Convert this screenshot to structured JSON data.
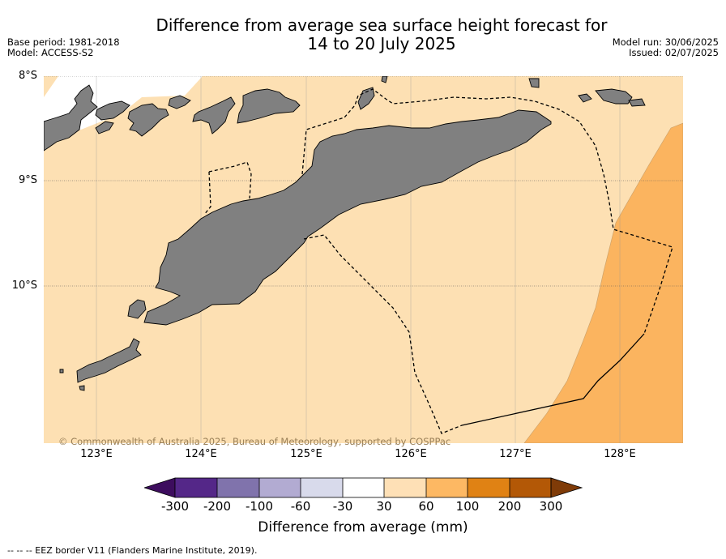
{
  "title": "Difference from average sea surface height forecast for\n14 to 20 July 2025",
  "meta_left": {
    "base_period": "Base period: 1981-2018",
    "model": "Model: ACCESS-S2"
  },
  "meta_right": {
    "model_run": "Model run: 30/06/2025",
    "issued": "Issued: 02/07/2025"
  },
  "map": {
    "lat_labels": [
      "8°S",
      "9°S",
      "10°S"
    ],
    "lon_labels": [
      "123°E",
      "124°E",
      "125°E",
      "126°E",
      "127°E",
      "128°E"
    ],
    "copyright": "© Commonwealth of Australia 2025, Bureau of Meteorology, supported by COSPPac",
    "colors": {
      "ocean_30_60": "#fde0b3",
      "ocean_60_100": "#fbb45f",
      "ocean_m30_30": "#ffffff",
      "land": "#808080"
    }
  },
  "colorbar": {
    "tick_labels": [
      "-300",
      "-200",
      "-100",
      "-60",
      "-30",
      "30",
      "60",
      "100",
      "200",
      "300"
    ],
    "colors": [
      "#3d0d5e",
      "#542788",
      "#8073ac",
      "#b2abd2",
      "#d8daeb",
      "#ffffff",
      "#fee0b6",
      "#fdb863",
      "#e08214",
      "#b35806",
      "#7f3b08"
    ],
    "label": "Difference from average (mm)"
  },
  "legend": {
    "eez": "--  --  -- EEZ border V11 (Flanders Marine Institute, 2019)."
  }
}
